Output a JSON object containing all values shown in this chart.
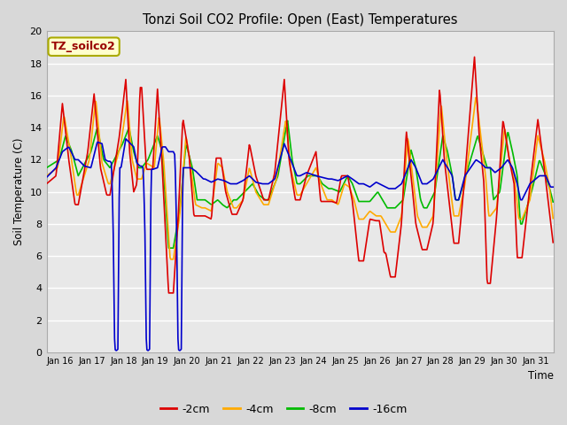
{
  "title": "Tonzi Soil CO2 Profile: Open (East) Temperatures",
  "ylabel": "Soil Temperature (C)",
  "xlabel": "Time",
  "xlabels": [
    "Jan 16",
    "Jan 17",
    "Jan 18",
    "Jan 19",
    "Jan 20",
    "Jan 21",
    "Jan 22",
    "Jan 23",
    "Jan 24",
    "Jan 25",
    "Jan 26",
    "Jan 27",
    "Jan 28",
    "Jan 29",
    "Jan 30",
    "Jan 31"
  ],
  "ylim": [
    0,
    20
  ],
  "yticks": [
    0,
    2,
    4,
    6,
    8,
    10,
    12,
    14,
    16,
    18,
    20
  ],
  "colors": {
    "-2cm": "#dd0000",
    "-4cm": "#ffaa00",
    "-8cm": "#00bb00",
    "-16cm": "#0000cc"
  },
  "legend_label": "TZ_soilco2",
  "bg_color": "#e8e8e8",
  "grid_color": "#ffffff",
  "linewidth": 1.2,
  "fig_bg": "#d8d8d8"
}
